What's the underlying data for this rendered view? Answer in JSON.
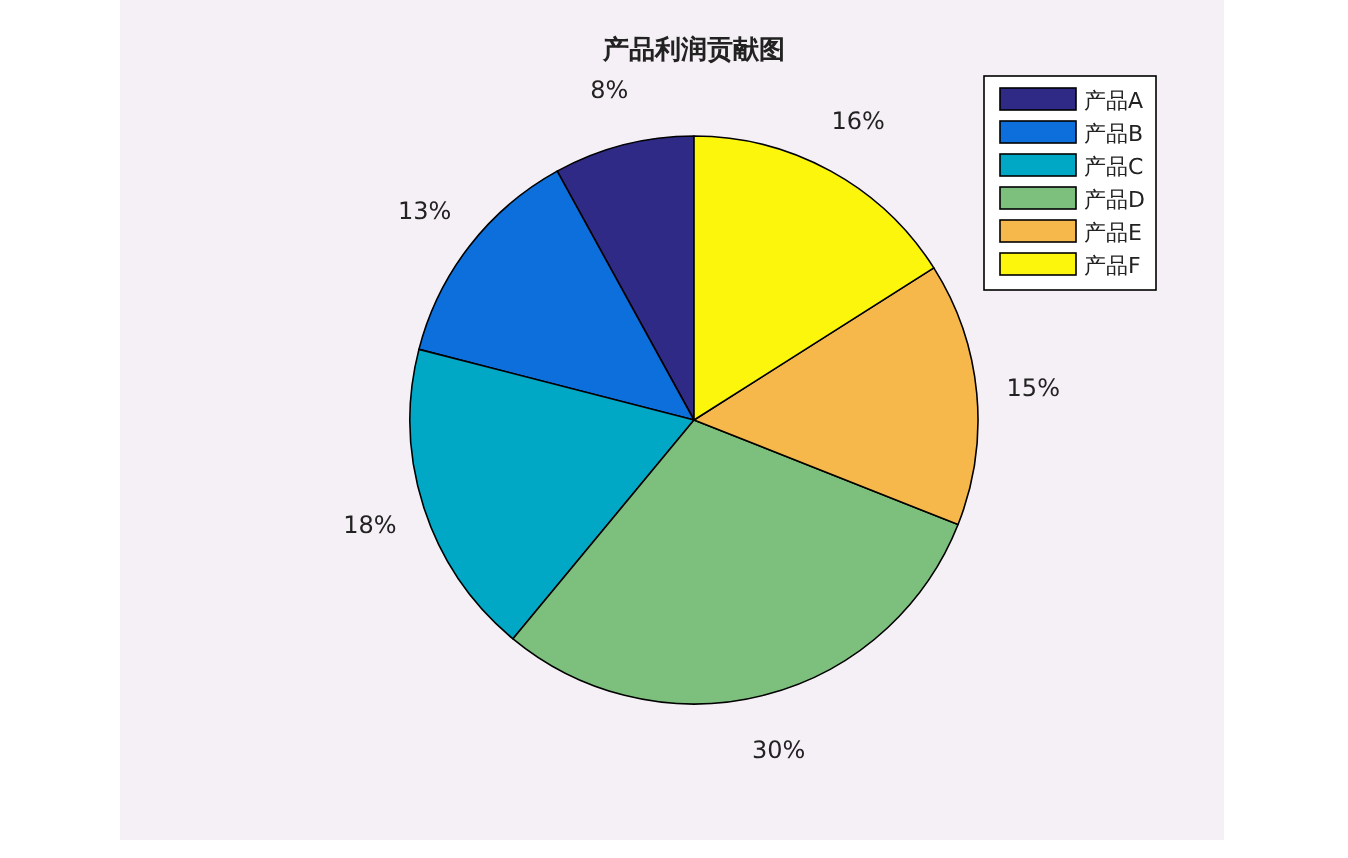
{
  "chart_data": {
    "type": "pie",
    "title": "产品利润贡献图",
    "categories": [
      "产品A",
      "产品B",
      "产品C",
      "产品D",
      "产品E",
      "产品F"
    ],
    "values": [
      8,
      13,
      18,
      30,
      15,
      16
    ],
    "colors": [
      "#2e2a86",
      "#0c6fdc",
      "#00a8c6",
      "#7dbf7c",
      "#f7b84b",
      "#fbf60c"
    ],
    "value_labels": [
      "8%",
      "13%",
      "18%",
      "30%",
      "15%",
      "16%"
    ],
    "legend": "top right"
  }
}
